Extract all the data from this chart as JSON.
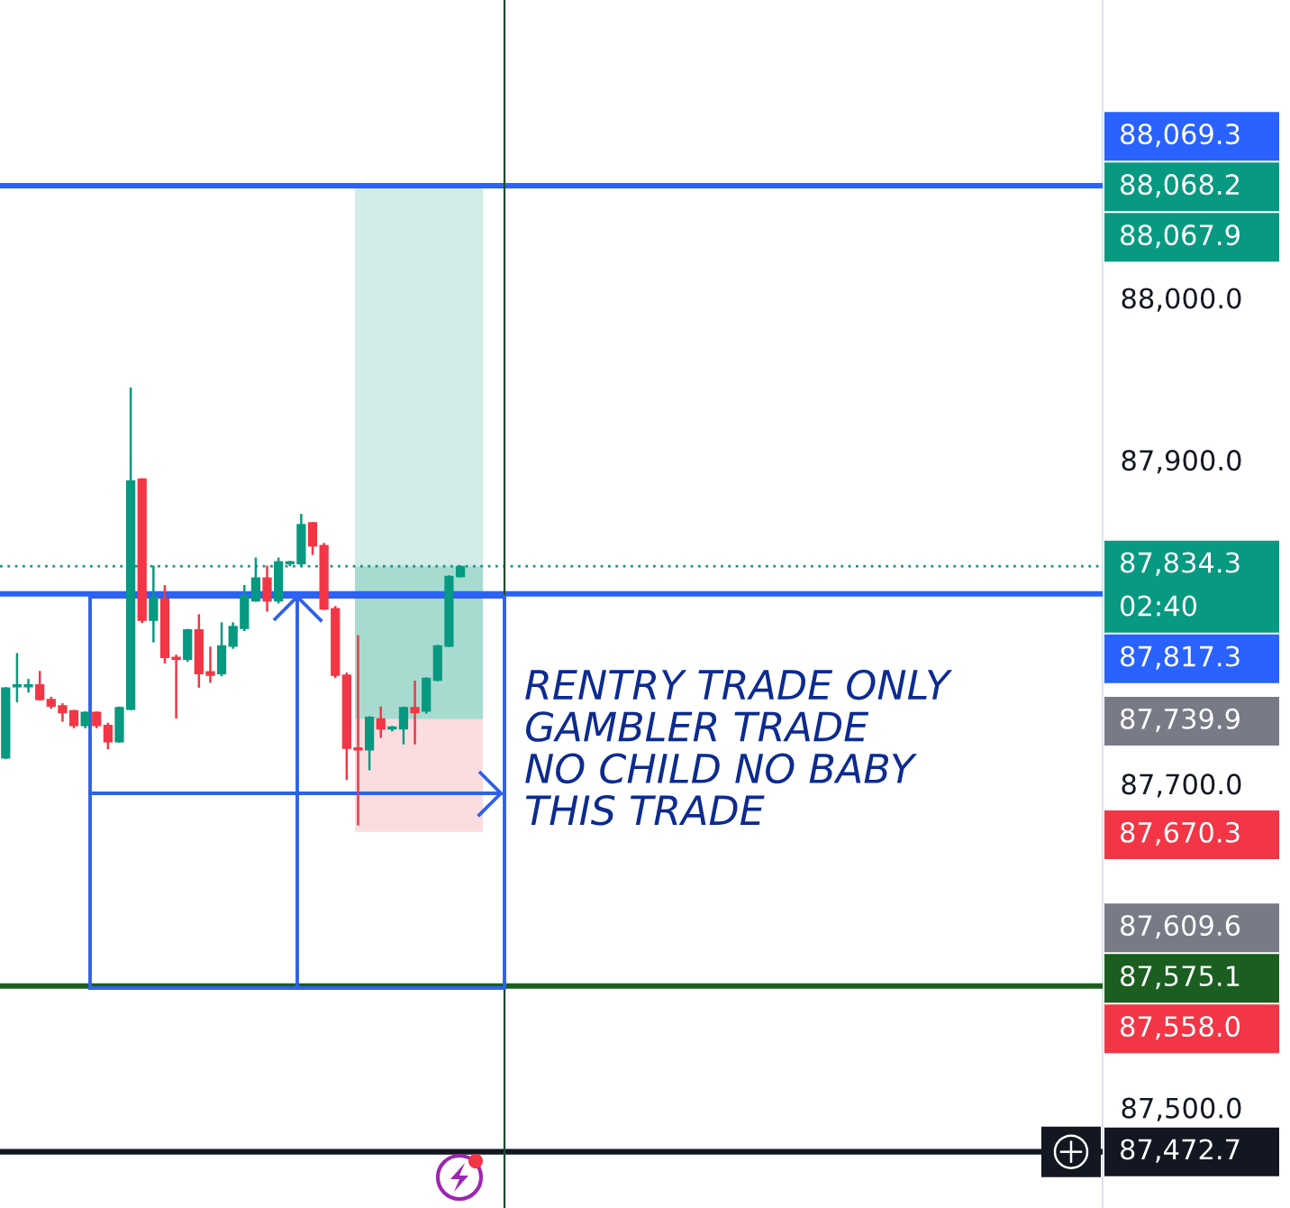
{
  "chart_data": {
    "type": "candlestick",
    "categories": [
      null,
      null,
      null,
      null,
      null,
      null,
      null,
      null,
      null,
      null,
      null,
      null,
      null,
      null,
      null,
      null,
      null,
      null,
      null,
      null,
      null,
      null,
      null,
      null,
      null,
      null,
      null,
      null,
      null,
      null,
      null,
      null,
      null,
      null,
      null,
      null,
      null,
      null,
      null,
      null,
      null,
      null,
      null,
      null,
      null,
      null,
      null,
      null,
      null,
      null,
      null,
      null,
      null,
      null,
      null,
      null,
      null,
      null,
      null,
      null,
      null,
      null,
      null,
      null,
      null,
      null,
      null,
      null,
      null,
      null,
      null,
      null,
      null,
      null,
      null,
      null,
      null,
      null,
      null,
      null,
      null,
      null,
      null,
      null,
      null,
      null,
      null,
      null,
      null,
      null,
      null,
      null,
      null,
      null,
      null,
      null,
      null
    ],
    "ohlc": [
      [
        87716,
        87759,
        87716,
        87759
      ],
      [
        87760,
        87780,
        87751,
        87761
      ],
      [
        87760,
        87764,
        87757,
        87761
      ],
      [
        87761,
        87769,
        87752,
        87752
      ],
      [
        87752,
        87753,
        87747,
        87748
      ],
      [
        87748,
        87749,
        87739,
        87744
      ],
      [
        87745,
        87745,
        87735,
        87736
      ],
      [
        87736,
        87744,
        87735,
        87744
      ],
      [
        87744,
        87744,
        87735,
        87736
      ],
      [
        87736,
        87737,
        87722,
        87726
      ],
      [
        87726,
        87747,
        87726,
        87747
      ],
      [
        87746,
        87944,
        87746,
        87887
      ],
      [
        87888,
        87888,
        87800,
        87801
      ],
      [
        87801,
        87834,
        87788,
        87815
      ],
      [
        87814,
        87822,
        87775,
        87778
      ],
      [
        87778,
        87779,
        87741,
        87777
      ],
      [
        87777,
        87795,
        87776,
        87795
      ],
      [
        87795,
        87804,
        87760,
        87768
      ],
      [
        87769,
        87784,
        87763,
        87767
      ],
      [
        87768,
        87799,
        87767,
        87785
      ],
      [
        87785,
        87799,
        87784,
        87797
      ],
      [
        87796,
        87822,
        87795,
        87816
      ],
      [
        87813,
        87839,
        87813,
        87827
      ],
      [
        87827,
        87834,
        87807,
        87813
      ],
      [
        87813,
        87839,
        87812,
        87837
      ],
      [
        87836,
        87837,
        87835,
        87837
      ],
      [
        87836,
        87866,
        87835,
        87860
      ],
      [
        87861,
        87861,
        87842,
        87847
      ],
      [
        87847,
        87848,
        87808,
        87808
      ],
      [
        87808,
        87809,
        87766,
        87767
      ],
      [
        87767,
        87768,
        87703,
        87722
      ],
      [
        87722,
        87791,
        87675,
        87721
      ],
      [
        87721,
        87741,
        87709,
        87741
      ],
      [
        87740,
        87747,
        87729,
        87734
      ],
      [
        87734,
        87735,
        87733,
        87735
      ],
      [
        87734,
        87747,
        87725,
        87747
      ],
      [
        87747,
        87763,
        87725,
        87744
      ],
      [
        87745,
        87765,
        87744,
        87765
      ],
      [
        87764,
        87785,
        87764,
        87785
      ],
      [
        87785,
        87828,
        87785,
        87828
      ],
      [
        87828,
        87834,
        87828,
        87834
      ],
      null,
      null,
      null,
      null,
      null,
      null,
      null,
      null,
      null,
      null,
      null,
      null,
      null,
      null,
      null,
      null,
      null,
      null,
      null,
      null,
      null,
      null,
      null,
      null,
      null,
      null,
      null,
      null,
      null,
      null,
      null,
      null,
      null,
      null,
      null,
      null,
      null,
      null,
      null,
      null,
      null,
      null,
      null,
      null,
      null,
      null,
      null,
      null,
      null,
      null,
      null,
      null,
      null,
      null,
      null,
      null
    ],
    "colors": [
      "#089981",
      "#089981",
      "#089981",
      "#f23645",
      "#f23645",
      "#f23645",
      "#f23645",
      "#089981",
      "#f23645",
      "#f23645",
      "#089981",
      "#089981",
      "#f23645",
      "#089981",
      "#f23645",
      "#f23645",
      "#089981",
      "#f23645",
      "#f23645",
      "#089981",
      "#089981",
      "#089981",
      "#089981",
      "#f23645",
      "#089981",
      "#089981",
      "#089981",
      "#f23645",
      "#f23645",
      "#f23645",
      "#f23645",
      "#f23645",
      "#089981",
      "#f23645",
      "#089981",
      "#089981",
      "#f23645",
      "#089981",
      "#089981",
      "#089981",
      "#089981",
      null,
      null,
      null,
      null,
      null,
      null,
      null,
      null,
      null,
      null,
      null,
      null,
      null,
      null,
      null,
      null,
      null,
      null,
      null,
      null,
      null,
      null,
      null,
      null,
      null,
      null,
      null,
      null,
      null,
      null,
      null,
      null,
      null,
      null,
      null,
      null,
      null,
      null,
      null,
      null,
      null,
      null,
      null,
      null,
      null,
      null,
      null,
      null,
      null,
      null,
      null,
      null,
      null,
      null,
      null,
      null
    ],
    "ylim": [
      87438,
      88184
    ],
    "yticks": [
      {
        "value": 88000,
        "label": "88,000.0"
      },
      {
        "value": 87900,
        "label": "87,900.0"
      },
      {
        "value": 87700,
        "label": "87,700.0"
      },
      {
        "value": 87500,
        "label": "87,500.0"
      }
    ],
    "ref_lines": [
      {
        "axis": "y",
        "value": 88069.3,
        "label": "88,069.3",
        "color": "#2962ff",
        "line_style": "solid"
      },
      {
        "axis": "y",
        "value": 87834.3,
        "label": "87,834.3\n02:40",
        "color": "#089981",
        "line_style": "dotted"
      },
      {
        "axis": "y",
        "value": 87817.3,
        "label": "87,817.3",
        "color": "#2962ff",
        "line_style": "solid"
      },
      {
        "axis": "y",
        "value": 87575.1,
        "label": "87,575.1",
        "color": "#1b5e20",
        "line_style": "solid"
      },
      {
        "axis": "y",
        "value": 87472.7,
        "label": "87,472.7",
        "color": "#131722",
        "line_style": "solid"
      }
    ],
    "bands": [
      {
        "axis": "y",
        "from": 87739.9,
        "to": 88068.2,
        "color": "#d1ebe6"
      },
      {
        "axis": "y",
        "from": 87739.9,
        "to": 87834.3,
        "color": "#a8dbd0"
      },
      {
        "axis": "y",
        "from": 87670.3,
        "to": 87739.9,
        "color": "#fbdde0"
      }
    ],
    "annotations": [
      "RENTRY TRADE ONLY\nGAMBLER TRADE\nNO CHILD NO BABY\nTHIS TRADE",
      "88,068.2",
      "88,067.9",
      "87,739.9",
      "87,670.3",
      "87,609.6",
      "87,558.0"
    ]
  }
}
